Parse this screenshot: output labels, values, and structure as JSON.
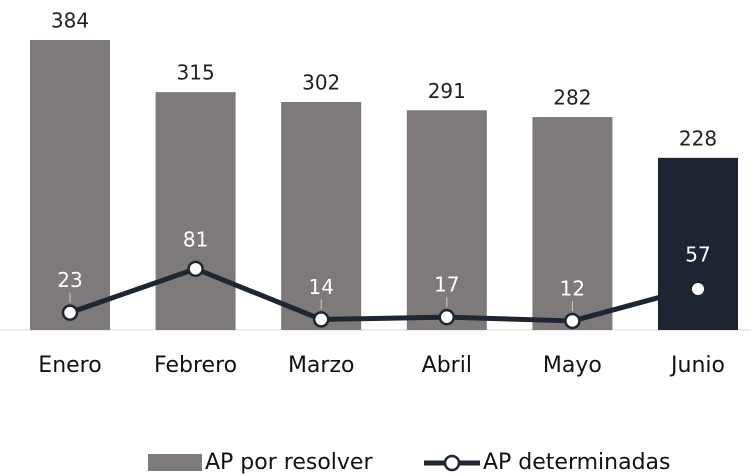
{
  "chart_data": {
    "type": "bar-line",
    "categories": [
      "Enero",
      "Febrero",
      "Marzo",
      "Abril",
      "Mayo",
      "Junio"
    ],
    "series": [
      {
        "name": "AP por resolver",
        "type": "bar",
        "color": "#7f7a7a",
        "colors": [
          "#7f7a7a",
          "#7f7a7a",
          "#7f7a7a",
          "#7f7a7a",
          "#7f7a7a",
          "#1d2530"
        ],
        "values": [
          384,
          315,
          302,
          291,
          282,
          228
        ]
      },
      {
        "name": "AP determinadas",
        "type": "line",
        "color": "#1e2631",
        "values": [
          23,
          81,
          14,
          17,
          12,
          57
        ]
      }
    ],
    "ylim": [
      0,
      437
    ]
  }
}
